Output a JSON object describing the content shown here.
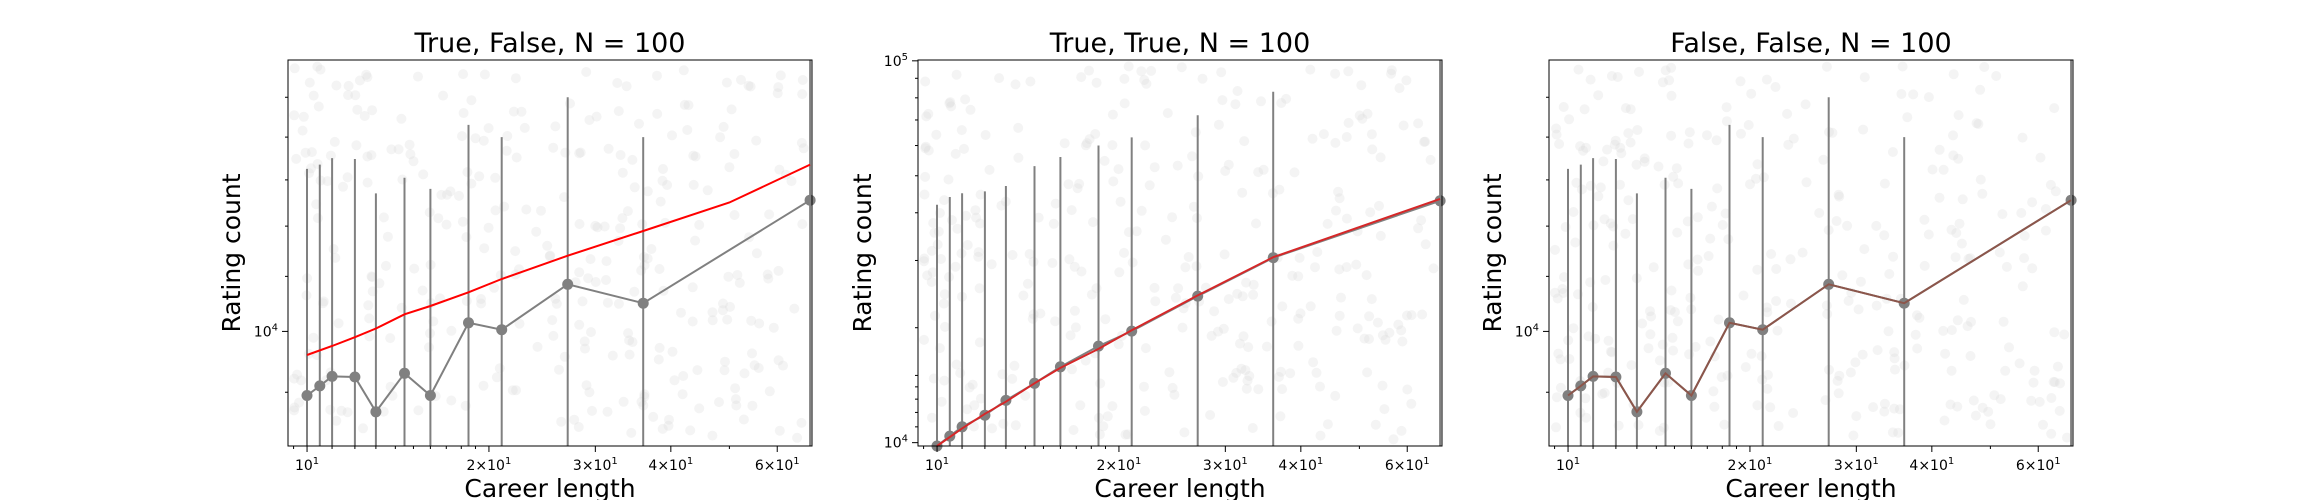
{
  "figure": {
    "background": "#ffffff"
  },
  "chart_data": [
    {
      "type": "scatter",
      "title": "True, False, N = 100",
      "xlabel": "Career length",
      "ylabel": "Rating count",
      "xscale": "log",
      "yscale": "log",
      "xlim": [
        9.3,
        68.5
      ],
      "ylim": [
        8200,
        16000
      ],
      "grid": false,
      "legend": "none",
      "x_tick_labels": [
        {
          "value": 10,
          "label": "10",
          "sup": "1"
        },
        {
          "value": 20,
          "label": "2×10",
          "sup": "1"
        },
        {
          "value": 30,
          "label": "3×10",
          "sup": "1"
        },
        {
          "value": 40,
          "label": "4×10",
          "sup": "1"
        },
        {
          "value": 60,
          "label": "6×10",
          "sup": "1"
        }
      ],
      "y_tick_labels": [
        {
          "value": 10000,
          "label": "10",
          "sup": "4"
        }
      ],
      "series": [
        {
          "kind": "errorbar",
          "color": "#808080",
          "marker": "circle",
          "x": [
            10,
            10.5,
            11,
            12,
            13,
            14.5,
            16,
            18.5,
            21,
            27,
            36,
            68
          ],
          "y": [
            8950,
            9100,
            9250,
            9240,
            8700,
            9300,
            8950,
            10150,
            10030,
            10850,
            10500,
            12550
          ],
          "yerr_low": [
            8950,
            9100,
            9250,
            9240,
            8700,
            9300,
            8950,
            10150,
            10030,
            10850,
            10500,
            12550
          ],
          "yerr_high": [
            13250,
            13350,
            13500,
            13480,
            12700,
            13050,
            12800,
            14300,
            14000,
            15000,
            14000,
            16000
          ]
        },
        {
          "kind": "line",
          "color": "#ff0000",
          "x": [
            10,
            11,
            12,
            13,
            14.5,
            16,
            18.5,
            21,
            27,
            36,
            50,
            68
          ],
          "y": [
            9600,
            9750,
            9900,
            10050,
            10300,
            10450,
            10700,
            10950,
            11400,
            11900,
            12500,
            13350
          ]
        }
      ]
    },
    {
      "type": "scatter",
      "title": "True, True,  N = 100",
      "xlabel": "Career length",
      "ylabel": "Rating count",
      "xscale": "log",
      "yscale": "log",
      "xlim": [
        9.3,
        68.5
      ],
      "ylim": [
        9800,
        100500
      ],
      "grid": false,
      "legend": "none",
      "x_tick_labels": [
        {
          "value": 10,
          "label": "10",
          "sup": "1"
        },
        {
          "value": 20,
          "label": "2×10",
          "sup": "1"
        },
        {
          "value": 30,
          "label": "3×10",
          "sup": "1"
        },
        {
          "value": 40,
          "label": "4×10",
          "sup": "1"
        },
        {
          "value": 60,
          "label": "6×10",
          "sup": "1"
        }
      ],
      "y_tick_labels": [
        {
          "value": 10000,
          "label": "10",
          "sup": "4"
        },
        {
          "value": 100000,
          "label": "10",
          "sup": "5"
        }
      ],
      "series": [
        {
          "kind": "errorbar",
          "color": "#808080",
          "marker": "circle",
          "x": [
            10,
            10.5,
            11,
            12,
            13,
            14.5,
            16,
            18.5,
            21,
            27,
            36,
            68
          ],
          "y": [
            9800,
            10400,
            11000,
            11800,
            12900,
            14300,
            15800,
            17900,
            19600,
            24200,
            30500,
            43000
          ],
          "yerr_low": [
            9800,
            10400,
            11000,
            11800,
            12900,
            14300,
            15800,
            17900,
            19600,
            24200,
            30500,
            43000
          ],
          "yerr_high": [
            42000,
            44000,
            45000,
            45500,
            47000,
            53000,
            56000,
            60000,
            63000,
            72000,
            83000,
            100500
          ]
        },
        {
          "kind": "line",
          "color": "#d62728",
          "x": [
            10,
            11,
            12,
            13,
            14.5,
            16,
            18.5,
            21,
            27,
            36,
            68
          ],
          "y": [
            9800,
            10900,
            11900,
            12800,
            14300,
            15700,
            17600,
            19700,
            24300,
            30600,
            43500
          ]
        }
      ]
    },
    {
      "type": "scatter",
      "title": "False, False, N = 100",
      "xlabel": "Career length",
      "ylabel": "Rating count",
      "xscale": "log",
      "yscale": "log",
      "xlim": [
        9.3,
        68.5
      ],
      "ylim": [
        8200,
        16000
      ],
      "grid": false,
      "legend": "none",
      "x_tick_labels": [
        {
          "value": 10,
          "label": "10",
          "sup": "1"
        },
        {
          "value": 20,
          "label": "2×10",
          "sup": "1"
        },
        {
          "value": 30,
          "label": "3×10",
          "sup": "1"
        },
        {
          "value": 40,
          "label": "4×10",
          "sup": "1"
        },
        {
          "value": 60,
          "label": "6×10",
          "sup": "1"
        }
      ],
      "y_tick_labels": [
        {
          "value": 10000,
          "label": "10",
          "sup": "4"
        }
      ],
      "series": [
        {
          "kind": "errorbar",
          "color": "#808080",
          "marker": "circle",
          "x": [
            10,
            10.5,
            11,
            12,
            13,
            14.5,
            16,
            18.5,
            21,
            27,
            36,
            68
          ],
          "y": [
            8950,
            9100,
            9250,
            9240,
            8700,
            9300,
            8950,
            10150,
            10030,
            10850,
            10500,
            12550
          ],
          "yerr_low": [
            8950,
            9100,
            9250,
            9240,
            8700,
            9300,
            8950,
            10150,
            10030,
            10850,
            10500,
            12550
          ],
          "yerr_high": [
            13250,
            13350,
            13500,
            13480,
            12700,
            13050,
            12800,
            14300,
            14000,
            15000,
            14000,
            16000
          ]
        },
        {
          "kind": "line",
          "color": "#8c564b",
          "x": [
            10,
            10.5,
            11,
            12,
            13,
            14.5,
            16,
            18.5,
            21,
            27,
            36,
            68
          ],
          "y": [
            8950,
            9100,
            9250,
            9240,
            8700,
            9300,
            8950,
            10150,
            10030,
            10850,
            10500,
            12550
          ]
        }
      ]
    }
  ]
}
